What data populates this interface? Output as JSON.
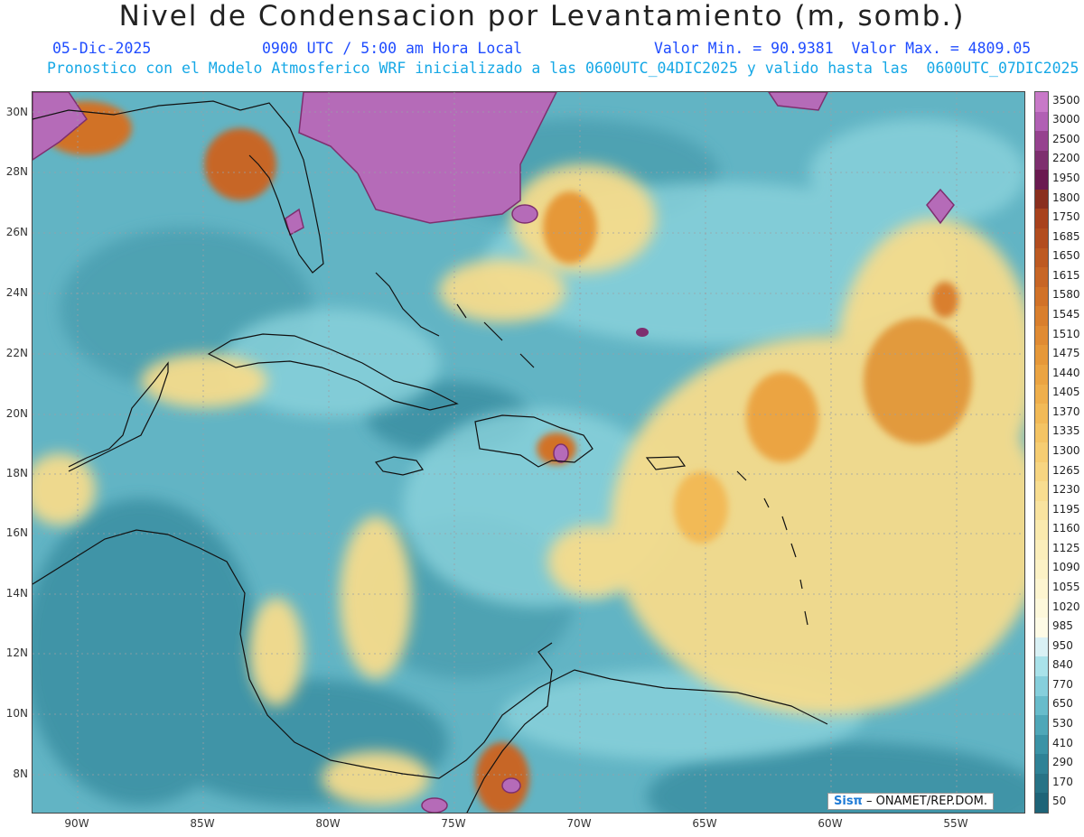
{
  "title": "Nivel de Condensacion por Levantamiento (m, somb.)",
  "date": "05-Dic-2025",
  "time": "0900 UTC / 5:00 am Hora Local",
  "minmax": "Valor Min. = 90.9381  Valor Max. = 4809.05",
  "description": "Pronostico con el Modelo Atmosferico WRF inicializado a las 0600UTC_04DIC2025 y valido hasta las  0600UTC_07DIC2025",
  "credit": {
    "brand": "Sisπ",
    "org": "– ONAMET/REP.DOM."
  },
  "lat_labels": [
    "30N",
    "28N",
    "26N",
    "24N",
    "22N",
    "20N",
    "18N",
    "16N",
    "14N",
    "12N",
    "10N",
    "8N"
  ],
  "lon_labels": [
    "90W",
    "85W",
    "80W",
    "75W",
    "70W",
    "65W",
    "60W",
    "55W"
  ],
  "colorbar": {
    "labels": [
      "3500",
      "3000",
      "2500",
      "2200",
      "1950",
      "1800",
      "1750",
      "1685",
      "1650",
      "1615",
      "1580",
      "1545",
      "1510",
      "1475",
      "1440",
      "1405",
      "1370",
      "1335",
      "1300",
      "1265",
      "1230",
      "1195",
      "1160",
      "1125",
      "1090",
      "1055",
      "1020",
      "985",
      "950",
      "840",
      "770",
      "650",
      "530",
      "410",
      "290",
      "170",
      "50"
    ],
    "colors": [
      "#c879c8",
      "#b160b4",
      "#96428f",
      "#7e2f6f",
      "#6a1a50",
      "#8a2f1e",
      "#a8421d",
      "#b24d1f",
      "#bd5a22",
      "#c76626",
      "#d17228",
      "#d97f2d",
      "#e08b33",
      "#e69839",
      "#eba442",
      "#efaf4c",
      "#f2ba57",
      "#f4c464",
      "#f6cd72",
      "#f7d581",
      "#f8dd90",
      "#f9e39f",
      "#faeaae",
      "#fbeebb",
      "#fcf2c6",
      "#fdf5d0",
      "#fdf8db",
      "#fefbe6",
      "#d9f1f5",
      "#a9e2ea",
      "#86cfdc",
      "#68bccb",
      "#4fa7b8",
      "#3b93a6",
      "#2f8296",
      "#277386",
      "#1e6478"
    ]
  },
  "map": {
    "region": "Caribbean Sea, Gulf of Mexico and Central America",
    "lat_range": [
      6.7,
      30.6
    ],
    "lon_range": [
      -91.8,
      -52.3
    ],
    "colors": {
      "ocean_base": "#62b4c4",
      "low": "#3b8fa2",
      "mid": "#8bd3dc",
      "warm": "#f6dc8c",
      "orange": "#e29a3c",
      "high": "#b56bb8",
      "coast": "#111111",
      "grid": "#9aa0a6"
    }
  }
}
